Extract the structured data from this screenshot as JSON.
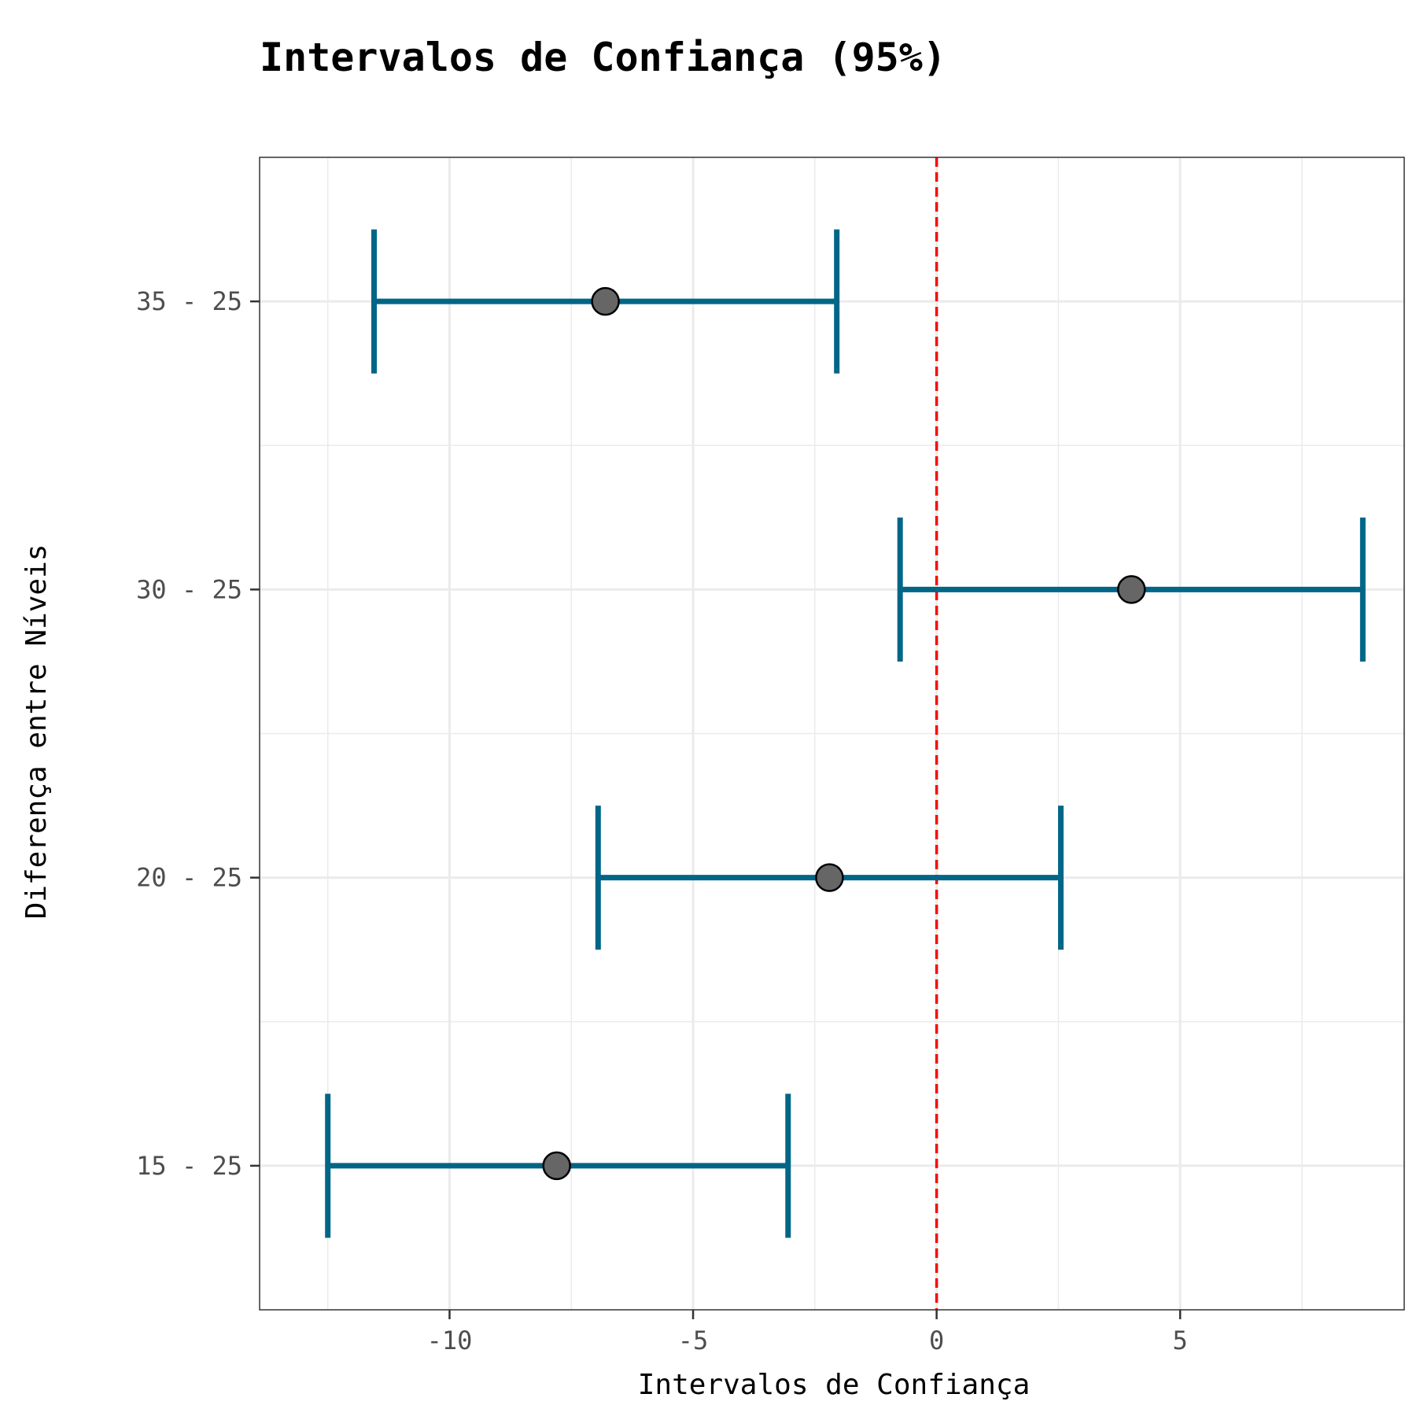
{
  "chart_data": {
    "type": "errorbar",
    "title": "Intervalos de Confiança (95%)",
    "xlabel": "Intervalos de Confiança",
    "ylabel": "Diferença entre Níveis",
    "xlim": [
      -13.9,
      9.6
    ],
    "xticks": [
      -10,
      -5,
      0,
      5
    ],
    "xtick_labels": [
      "-10",
      "-5",
      "0",
      "5"
    ],
    "categories": [
      "15 - 25",
      "20 - 25",
      "30 - 25",
      "35 - 25"
    ],
    "estimates": [
      -7.8,
      -2.2,
      4.0,
      -6.8
    ],
    "lower": [
      -12.5,
      -6.95,
      -0.75,
      -11.55
    ],
    "upper": [
      -3.05,
      2.55,
      8.75,
      -2.05
    ],
    "reference_line": 0,
    "colors": {
      "errorbar": "#006687",
      "point_fill": "#666666",
      "reference": "#ff0000",
      "grid": "#ebebeb"
    }
  }
}
